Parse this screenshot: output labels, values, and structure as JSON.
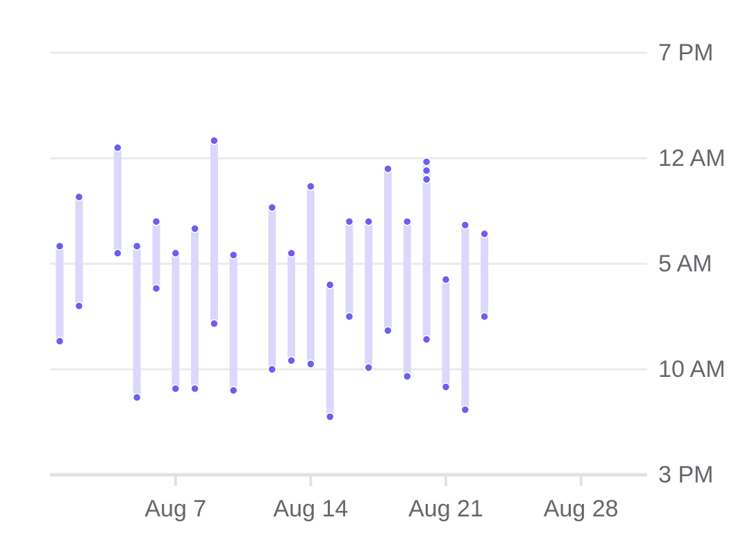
{
  "chart_data": {
    "type": "range-bar",
    "title": "",
    "xlabel": "",
    "ylabel": "",
    "x_axis": {
      "type": "date",
      "ticks": [
        {
          "date": "2023-08-07",
          "label": "Aug 7"
        },
        {
          "date": "2023-08-14",
          "label": "Aug 14"
        },
        {
          "date": "2023-08-21",
          "label": "Aug 21"
        },
        {
          "date": "2023-08-28",
          "label": "Aug 28"
        }
      ],
      "range": [
        "2023-07-31",
        "2023-08-30"
      ]
    },
    "y_axis": {
      "type": "time",
      "position": "right",
      "reversed": true,
      "ticks": [
        {
          "time": "19:00",
          "label": "7 PM"
        },
        {
          "time": "24:00",
          "label": "12 AM"
        },
        {
          "time": "29:00",
          "label": "5 AM"
        },
        {
          "time": "34:00",
          "label": "10 AM"
        },
        {
          "time": "39:00",
          "label": "3 PM"
        }
      ],
      "range": [
        "19:00",
        "39:00"
      ]
    },
    "grid": true,
    "colors": {
      "bar": "#dcd8fb",
      "point": "#6b5ef0",
      "grid": "#ebebeb",
      "axis": "#e2e2e6",
      "label": "#66666c"
    },
    "series": [
      {
        "ranges": [
          {
            "date": "2023-08-01",
            "start": "04:10",
            "end": "08:40"
          },
          {
            "date": "2023-08-02",
            "start": "01:50",
            "end": "07:00"
          },
          {
            "date": "2023-08-04",
            "start": "23:30",
            "end": "04:30"
          },
          {
            "date": "2023-08-05",
            "start": "04:10",
            "end": "11:20"
          },
          {
            "date": "2023-08-06",
            "start": "03:00",
            "end": "06:10"
          },
          {
            "date": "2023-08-07",
            "start": "04:30",
            "end": "10:55"
          },
          {
            "date": "2023-08-08",
            "start": "03:20",
            "end": "10:55"
          },
          {
            "date": "2023-08-09",
            "start": "23:10",
            "end": "07:50"
          },
          {
            "date": "2023-08-10",
            "start": "04:35",
            "end": "11:00"
          },
          {
            "date": "2023-08-12",
            "start": "02:20",
            "end": "10:00"
          },
          {
            "date": "2023-08-13",
            "start": "04:30",
            "end": "09:35"
          },
          {
            "date": "2023-08-14",
            "start": "01:20",
            "end": "09:45"
          },
          {
            "date": "2023-08-15",
            "start": "06:00",
            "end": "12:15"
          },
          {
            "date": "2023-08-16",
            "start": "03:00",
            "end": "07:30"
          },
          {
            "date": "2023-08-17",
            "start": "03:00",
            "end": "09:55"
          },
          {
            "date": "2023-08-18",
            "start": "00:30",
            "end": "08:10"
          },
          {
            "date": "2023-08-19",
            "start": "03:00",
            "end": "10:20"
          },
          {
            "date": "2023-08-20",
            "start": "00:10",
            "end": "08:35",
            "extra_points": [
              "00:35",
              "01:00"
            ]
          },
          {
            "date": "2023-08-21",
            "start": "05:45",
            "end": "10:50"
          },
          {
            "date": "2023-08-22",
            "start": "03:10",
            "end": "11:55"
          },
          {
            "date": "2023-08-23",
            "start": "03:35",
            "end": "07:30"
          }
        ]
      }
    ]
  }
}
